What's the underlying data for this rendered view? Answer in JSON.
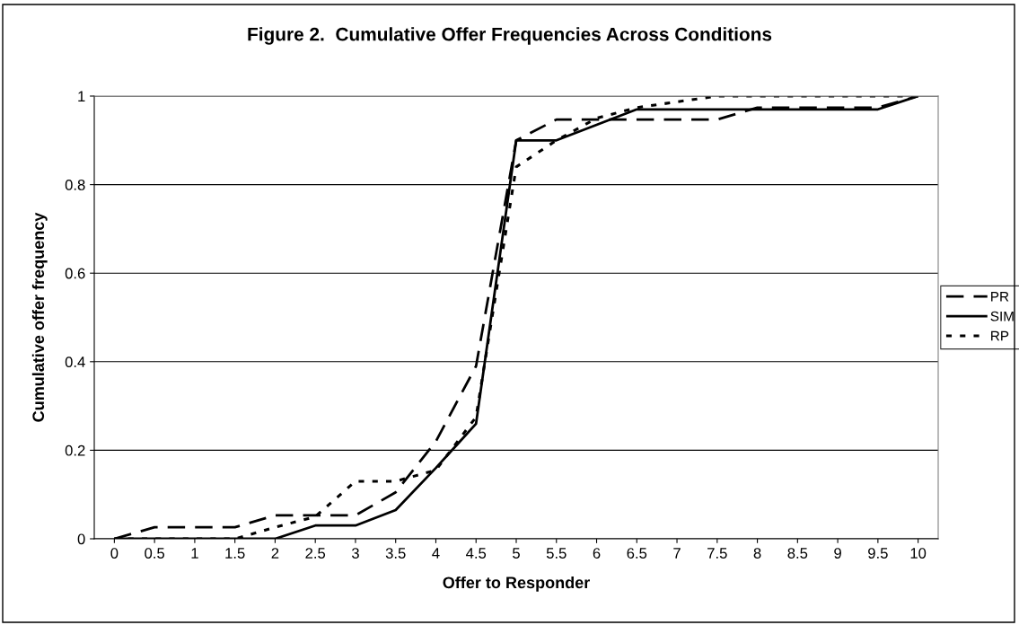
{
  "chart_data": {
    "type": "line",
    "title": "Figure 2.  Cumulative Offer Frequencies Across Conditions",
    "xlabel": "Offer to Responder",
    "ylabel": "Cumulative offer frequency",
    "categories": [
      "0",
      "0.5",
      "1",
      "1.5",
      "2",
      "2.5",
      "3",
      "3.5",
      "4",
      "4.5",
      "5",
      "5.5",
      "6",
      "6.5",
      "7",
      "7.5",
      "8",
      "8.5",
      "9",
      "9.5",
      "10"
    ],
    "series": [
      {
        "name": "PR",
        "color": "#000000",
        "line_style": "dashed",
        "values": [
          0,
          0.026,
          0.026,
          0.026,
          0.053,
          0.053,
          0.053,
          0.105,
          0.22,
          0.39,
          0.9,
          0.947,
          0.947,
          0.947,
          0.947,
          0.947,
          0.974,
          0.974,
          0.974,
          0.974,
          1
        ]
      },
      {
        "name": "SIM",
        "color": "#000000",
        "line_style": "solid",
        "values": [
          0,
          0,
          0,
          0,
          0,
          0.03,
          0.03,
          0.065,
          0.16,
          0.26,
          0.9,
          0.9,
          0.935,
          0.97,
          0.97,
          0.97,
          0.97,
          0.97,
          0.97,
          0.97,
          1
        ]
      },
      {
        "name": "RP",
        "color": "#000000",
        "line_style": "dotted",
        "values": [
          0,
          0,
          0,
          0,
          0.026,
          0.05,
          0.13,
          0.13,
          0.155,
          0.275,
          0.84,
          0.9,
          0.95,
          0.974,
          0.987,
          1,
          1,
          1,
          1,
          1,
          1
        ]
      }
    ],
    "ylim": [
      0,
      1
    ],
    "yticks": [
      0,
      0.2,
      0.4,
      0.6,
      0.8,
      1
    ],
    "grid": "y",
    "legend": "right",
    "marker": "none"
  }
}
